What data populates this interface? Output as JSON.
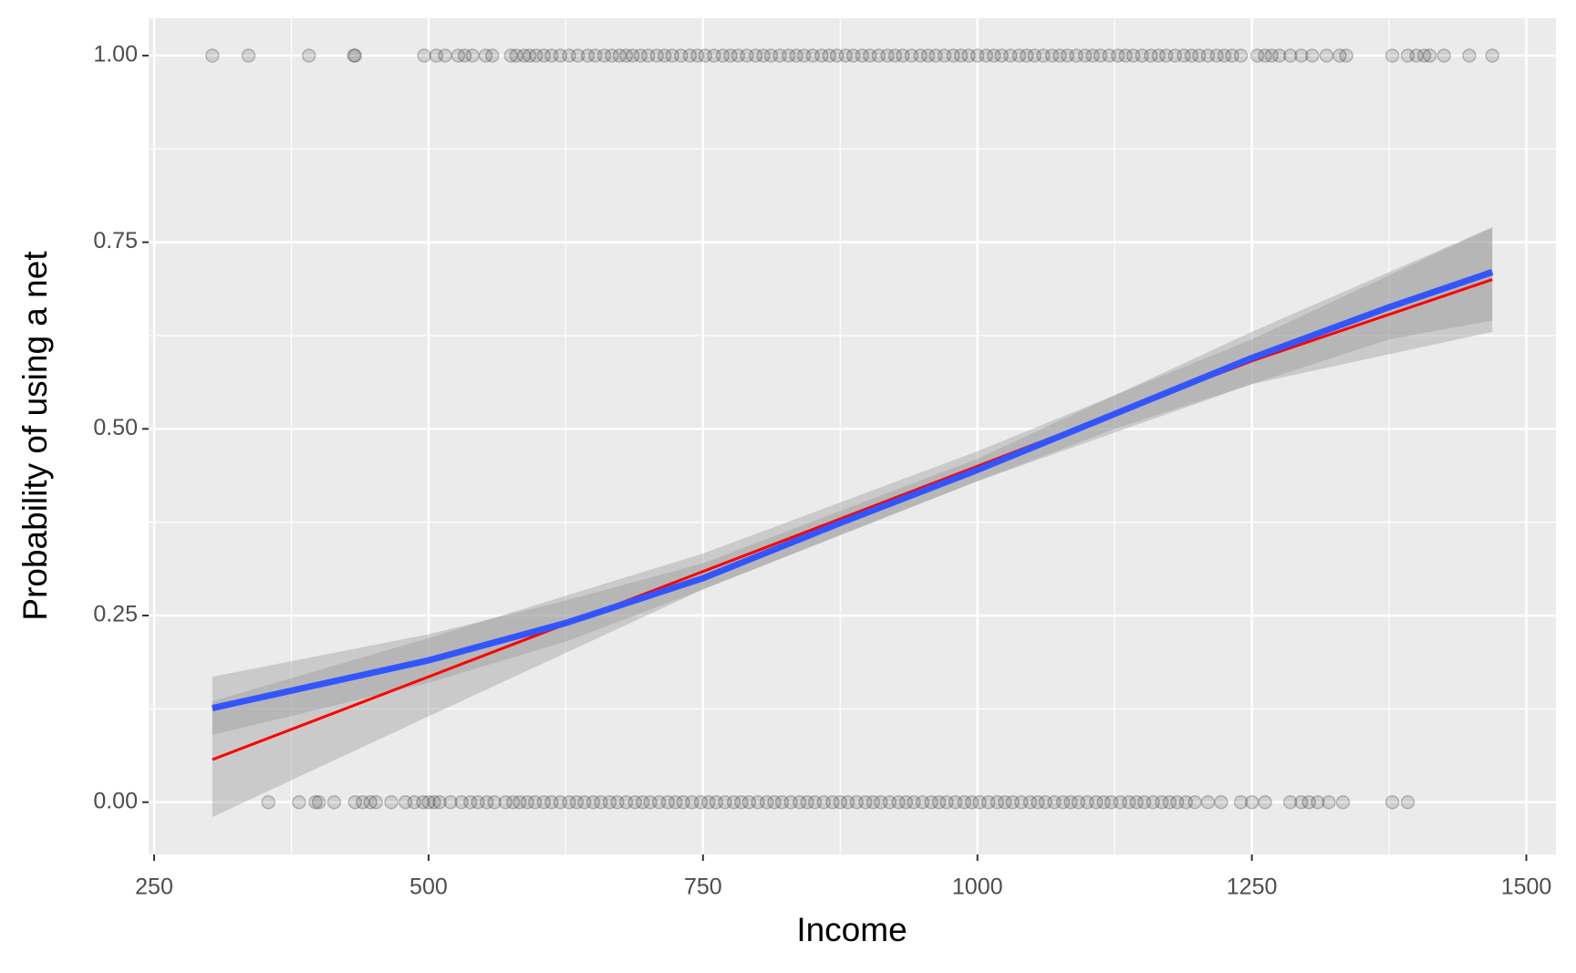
{
  "chart_data": {
    "type": "scatter",
    "x_label": "Income",
    "y_label": "Probability of using a net",
    "xlim": [
      245,
      1527
    ],
    "ylim": [
      -0.07,
      1.05
    ],
    "xticks": [
      250,
      500,
      750,
      1000,
      1250,
      1500
    ],
    "xminor": [
      375,
      625,
      875,
      1125,
      1375
    ],
    "yticks": [
      {
        "value": 0,
        "label": "0.00"
      },
      {
        "value": 0.25,
        "label": "0.25"
      },
      {
        "value": 0.5,
        "label": "0.50"
      },
      {
        "value": 0.75,
        "label": "0.75"
      },
      {
        "value": 1,
        "label": "1.00"
      }
    ],
    "yminor": [
      0.125,
      0.375,
      0.625,
      0.875
    ],
    "grid": true,
    "points": [
      {
        "y": 1,
        "color": "#000000",
        "x": [
          303,
          336,
          391,
          432,
          433,
          496,
          507,
          515,
          527,
          533,
          540,
          552,
          558,
          575,
          580,
          587,
          592,
          598,
          605,
          612,
          620,
          628,
          636,
          645,
          652,
          660,
          667,
          674,
          680,
          686,
          693,
          700,
          708,
          715,
          722,
          730,
          738,
          745,
          752,
          760,
          768,
          775,
          782,
          790,
          798,
          805,
          812,
          820,
          828,
          835,
          842,
          850,
          858,
          865,
          872,
          880,
          887,
          895,
          902,
          910,
          918,
          925,
          932,
          940,
          948,
          955,
          962,
          970,
          978,
          985,
          992,
          1000,
          1008,
          1015,
          1022,
          1030,
          1038,
          1045,
          1052,
          1060,
          1068,
          1075,
          1082,
          1090,
          1098,
          1105,
          1112,
          1120,
          1128,
          1135,
          1142,
          1150,
          1158,
          1165,
          1172,
          1180,
          1188,
          1195,
          1202,
          1210,
          1218,
          1225,
          1232,
          1240,
          1255,
          1262,
          1268,
          1275,
          1285,
          1295,
          1305,
          1318,
          1330,
          1336,
          1378,
          1392,
          1400,
          1407,
          1412,
          1425,
          1448,
          1469
        ]
      },
      {
        "y": 0,
        "color": "#000000",
        "x": [
          354,
          382,
          397,
          400,
          414,
          433,
          440,
          447,
          452,
          466,
          479,
          487,
          495,
          500,
          505,
          510,
          520,
          530,
          538,
          545,
          553,
          560,
          570,
          577,
          583,
          590,
          597,
          605,
          612,
          620,
          628,
          635,
          642,
          650,
          657,
          665,
          672,
          680,
          688,
          695,
          702,
          710,
          718,
          725,
          732,
          740,
          748,
          755,
          762,
          770,
          778,
          785,
          792,
          800,
          808,
          815,
          822,
          830,
          838,
          845,
          852,
          860,
          868,
          875,
          882,
          890,
          898,
          905,
          912,
          920,
          928,
          935,
          942,
          950,
          958,
          965,
          972,
          980,
          988,
          995,
          1002,
          1010,
          1018,
          1025,
          1032,
          1040,
          1048,
          1055,
          1062,
          1070,
          1078,
          1085,
          1092,
          1100,
          1108,
          1115,
          1122,
          1130,
          1138,
          1145,
          1152,
          1160,
          1168,
          1175,
          1182,
          1190,
          1198,
          1210,
          1222,
          1240,
          1250,
          1262,
          1285,
          1295,
          1302,
          1310,
          1320,
          1333,
          1378,
          1392
        ]
      }
    ],
    "fits": [
      {
        "color": "#ff0000",
        "width": 3,
        "x": [
          303,
          500,
          750,
          1000,
          1250,
          1469
        ],
        "values": [
          0.057,
          0.168,
          0.309,
          0.45,
          0.591,
          0.7
        ],
        "lower": [
          -0.02,
          0.115,
          0.285,
          0.43,
          0.56,
          0.63
        ],
        "upper": [
          0.135,
          0.22,
          0.333,
          0.47,
          0.62,
          0.77
        ]
      },
      {
        "color": "#3355ff",
        "width": 7,
        "x": [
          303,
          500,
          625,
          750,
          875,
          1000,
          1125,
          1250,
          1375,
          1469
        ],
        "values": [
          0.126,
          0.19,
          0.24,
          0.3,
          0.374,
          0.445,
          0.52,
          0.595,
          0.663,
          0.71
        ],
        "lower": [
          0.09,
          0.16,
          0.215,
          0.285,
          0.358,
          0.43,
          0.5,
          0.56,
          0.62,
          0.645
        ],
        "upper": [
          0.168,
          0.225,
          0.27,
          0.32,
          0.39,
          0.46,
          0.545,
          0.63,
          0.71,
          0.77
        ]
      }
    ]
  }
}
